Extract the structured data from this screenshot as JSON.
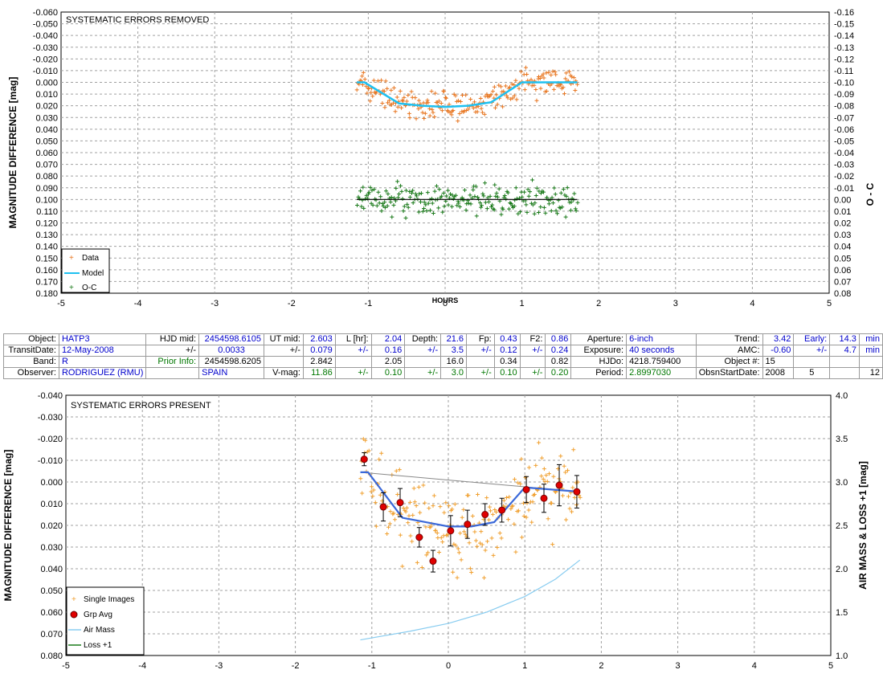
{
  "top_chart": {
    "chart_data": {
      "type": "scatter",
      "title": "SYSTEMATIC ERRORS REMOVED",
      "xlabel": "HOURS",
      "ylabel": "MAGNITUDE DIFFERENCE [mag]",
      "y2label": "O - C",
      "xlim": [
        -5,
        5
      ],
      "ylim": [
        -0.06,
        0.18
      ],
      "y_inverted": true,
      "y2lim": [
        -0.16,
        0.08
      ],
      "x_ticks": [
        "-5",
        "-4",
        "-3",
        "-2",
        "-1",
        "0",
        "1",
        "2",
        "3",
        "4",
        "5"
      ],
      "y_ticks": [
        "-0.060",
        "-0.050",
        "-0.040",
        "-0.030",
        "-0.020",
        "-0.010",
        "0.000",
        "0.010",
        "0.020",
        "0.030",
        "0.040",
        "0.050",
        "0.060",
        "0.070",
        "0.080",
        "0.090",
        "0.100",
        "0.110",
        "0.120",
        "0.130",
        "0.140",
        "0.150",
        "0.160",
        "0.170",
        "0.180"
      ],
      "y2_ticks": [
        "-0.16",
        "-0.15",
        "-0.14",
        "-0.13",
        "-0.12",
        "-0.11",
        "-0.10",
        "-0.09",
        "-0.08",
        "-0.07",
        "-0.06",
        "-0.05",
        "-0.04",
        "-0.03",
        "-0.02",
        "-0.01",
        "0.00",
        "0.01",
        "0.02",
        "0.03",
        "0.04",
        "0.05",
        "0.06",
        "0.07",
        "0.08"
      ],
      "grid": true,
      "legend_position": "bottom-left",
      "series": [
        {
          "name": "Data",
          "kind": "scatter",
          "color": "#e87722",
          "x_range": [
            -1.15,
            1.72
          ],
          "y_center_model": true,
          "scatter": 0.012
        },
        {
          "name": "Model",
          "kind": "line",
          "color": "#1ec0f0",
          "x": [
            -1.15,
            -1.05,
            -0.6,
            -0.3,
            0.0,
            0.3,
            0.6,
            1.0,
            1.72
          ],
          "y": [
            0.0,
            0.0,
            0.018,
            0.02,
            0.021,
            0.02,
            0.017,
            0.0,
            0.0
          ]
        },
        {
          "name": "O-C",
          "kind": "scatter",
          "color": "#1a7a1a",
          "x_range": [
            -1.15,
            1.72
          ],
          "y_offset": 0.1,
          "scatter": 0.013
        },
        {
          "name": "",
          "kind": "line",
          "color": "#000000",
          "x": [
            -1.15,
            1.72
          ],
          "y": [
            0.1,
            0.1
          ]
        }
      ]
    }
  },
  "info_table": {
    "row1": {
      "object_label": "Object:",
      "object": "HATP3",
      "hjd_mid_label": "HJD mid:",
      "hjd_mid": "2454598.6105",
      "ut_mid_label": "UT mid:",
      "ut_mid": "2.603",
      "l_label": "L [hr]:",
      "l": "2.04",
      "depth_label": "Depth:",
      "depth": "21.6",
      "fp_label": "Fp:",
      "fp": "0.43",
      "f2_label": "F2:",
      "f2": "0.86",
      "aperture_label": "Aperture:",
      "aperture": "6-inch",
      "trend_label": "Trend:",
      "trend": "3.42",
      "early_label": "Early:",
      "early": "14.3",
      "early_unit": "min"
    },
    "row2": {
      "date_label": "TransitDate:",
      "date": "12-May-2008",
      "pm1": "+/-",
      "hjd_err": "0.0033",
      "pm2": "+/-",
      "ut_err": "0.079",
      "pm3": "+/-",
      "l_err": "0.16",
      "pm4": "+/-",
      "depth_err": "3.5",
      "pm5": "+/-",
      "fp_err": "0.12",
      "pm6": "+/-",
      "f2_err": "0.24",
      "exposure_label": "Exposure:",
      "exposure": "40 seconds",
      "amc_label": "AMC:",
      "amc": "-0.60",
      "pm7": "+/-",
      "early_err": "4.7",
      "early_err_unit": "min"
    },
    "row3": {
      "band_label": "Band:",
      "band": "R",
      "prior_label": "Prior Info:",
      "prior": "2454598.6205",
      "prior_ut": "2.842",
      "prior_l": "2.05",
      "prior_depth": "16.0",
      "prior_fp": "0.34",
      "prior_f2": "0.82",
      "hjdo_label": "HJDo:",
      "hjdo": "4218.759400",
      "objnum_label": "Object #:",
      "objnum": "15"
    },
    "row4": {
      "observer_label": "Observer:",
      "observer": "RODRIGUEZ (RMU)",
      "country": "SPAIN",
      "vmag_label": "V-mag:",
      "vmag": "11.86",
      "pm1": "+/-",
      "vmag_err": "0.10",
      "pm2": "+/-",
      "depth_err2": "3.0",
      "pm3": "+/-",
      "fp_err2": "0.10",
      "pm4": "+/-",
      "f2_err2": "0.20",
      "period_label": "Period:",
      "period": "2.8997030",
      "start_label": "ObsnStartDate:",
      "year": "2008",
      "month": "5",
      "day": "12"
    }
  },
  "bottom_chart": {
    "chart_data": {
      "type": "scatter",
      "title": "SYSTEMATIC ERRORS PRESENT",
      "xlabel": "",
      "ylabel": "MAGNITUDE DIFFERENCE [mag]",
      "y2label": "AIR MASS & LOSS +1 [mag]",
      "xlim": [
        -5,
        5
      ],
      "ylim": [
        -0.04,
        0.08
      ],
      "y_inverted": true,
      "y2lim": [
        1.0,
        4.0
      ],
      "x_ticks": [
        "-5",
        "-4",
        "-3",
        "-2",
        "-1",
        "0",
        "1",
        "2",
        "3",
        "4",
        "5"
      ],
      "y_ticks": [
        "-0.040",
        "-0.030",
        "-0.020",
        "-0.010",
        "0.000",
        "0.010",
        "0.020",
        "0.030",
        "0.040",
        "0.050",
        "0.060",
        "0.070",
        "0.080"
      ],
      "y2_ticks": [
        "4.0",
        "3.5",
        "3.0",
        "2.5",
        "2.0",
        "1.5",
        "1.0"
      ],
      "grid": true,
      "legend_position": "bottom-left",
      "series": [
        {
          "name": "Single Images",
          "kind": "scatter",
          "color": "#f0a030",
          "x_range": [
            -1.15,
            1.72
          ],
          "scatter": 0.02
        },
        {
          "name": "Grp Avg",
          "kind": "errorbar",
          "color": "#e00000",
          "x": [
            -1.1,
            -0.85,
            -0.63,
            -0.38,
            -0.2,
            0.03,
            0.25,
            0.48,
            0.7,
            1.02,
            1.25,
            1.45,
            1.68
          ],
          "y": [
            -0.0105,
            0.0115,
            0.0095,
            0.0255,
            0.0365,
            0.0225,
            0.0195,
            0.015,
            0.013,
            0.0035,
            0.0075,
            0.0015,
            0.0045
          ],
          "err": [
            0.003,
            0.0065,
            0.0065,
            0.0045,
            0.005,
            0.007,
            0.0065,
            0.005,
            0.0055,
            0.006,
            0.0065,
            0.0095,
            0.0075
          ]
        },
        {
          "name": "",
          "kind": "line",
          "color": "#3a68d8",
          "x": [
            -1.15,
            -1.05,
            -0.6,
            -0.3,
            0.0,
            0.3,
            0.6,
            1.0,
            1.72
          ],
          "y": [
            -0.0045,
            -0.0045,
            0.0165,
            0.0185,
            0.0205,
            0.0205,
            0.0185,
            0.0025,
            0.0045
          ]
        },
        {
          "name": "",
          "kind": "line",
          "color": "#888888",
          "x": [
            -1.15,
            1.72
          ],
          "y": [
            -0.0045,
            0.0045
          ]
        },
        {
          "name": "Air Mass",
          "kind": "line",
          "color": "#88ccf0",
          "axis": "y2",
          "x": [
            -1.15,
            -0.5,
            0.0,
            0.5,
            1.0,
            1.4,
            1.72
          ],
          "y": [
            1.18,
            1.28,
            1.37,
            1.5,
            1.68,
            1.88,
            2.1
          ]
        },
        {
          "name": "Loss +1",
          "kind": "line",
          "color": "#1a7a1a",
          "axis": "y2",
          "x": [],
          "y": []
        }
      ]
    }
  }
}
